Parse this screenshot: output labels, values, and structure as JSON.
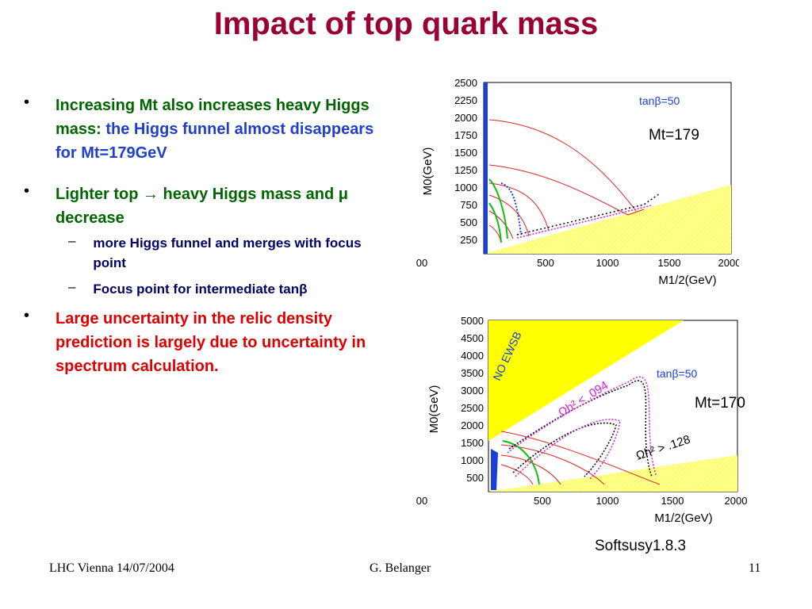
{
  "title": "Impact of top quark mass",
  "bullets": {
    "b1_part1": "Increasing Mt also increases heavy Higgs mass: ",
    "b1_part2": "the Higgs funnel almost disappears for Mt=179GeV",
    "b2_part1": "Lighter top ",
    "b2_arrow": "→",
    "b2_part2": " heavy Higgs mass and  ",
    "b2_mu": "μ",
    "b2_part3": " decrease",
    "sub1": "more Higgs funnel and merges with focus point",
    "sub2": "Focus point for intermediate tanβ",
    "b3": "Large uncertainty in the relic density prediction is largely due to uncertainty in spectrum calculation."
  },
  "plot1": {
    "label": "Mt=179",
    "tanb": "tanβ=50",
    "ylabel": "M0(GeV)",
    "xlabel": "M1/2(GeV)",
    "yticks": [
      "2500",
      "2250",
      "2000",
      "1750",
      "1500",
      "1250",
      "1000",
      "750",
      "500",
      "250"
    ],
    "xticks": [
      "00",
      "500",
      "1000",
      "1500",
      "2000"
    ]
  },
  "plot2": {
    "label": "Mt=170",
    "tanb": "tanβ=50",
    "ylabel": "M0(GeV)",
    "xlabel": "M1/2(GeV)",
    "yticks": [
      "5000",
      "4500",
      "4000",
      "3500",
      "3000",
      "2500",
      "2000",
      "1500",
      "1000",
      "500"
    ],
    "xticks": [
      "00",
      "500",
      "1000",
      "1500",
      "2000"
    ],
    "noewsb": "NO EWSB",
    "omega_low": "Ωh² < .094",
    "omega_high": "Ωh² > .128"
  },
  "softsusy": "Softsusy1.8.3",
  "footer": {
    "left": "LHC Vienna 14/07/2004",
    "center": "G. Belanger",
    "right": "11"
  },
  "colors": {
    "title": "#990033",
    "green_text": "#006600",
    "blue_text": "#1f3fcc",
    "red_text": "#e00000"
  }
}
